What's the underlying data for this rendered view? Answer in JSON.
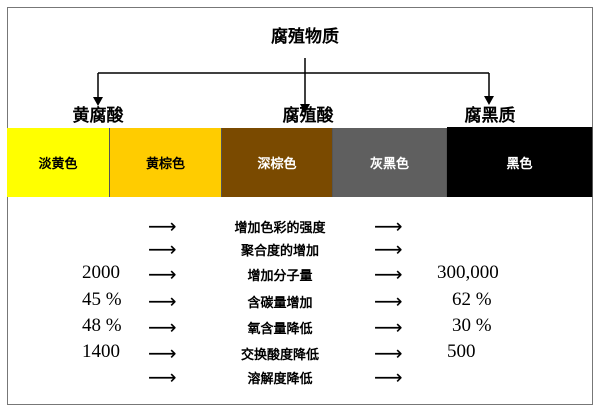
{
  "title": "腐殖物质",
  "levels": [
    "黄腐酸",
    "腐殖酸",
    "腐黑质"
  ],
  "colors": [
    {
      "label": "淡黄色",
      "bg": "#ffff00",
      "fg": "#000000"
    },
    {
      "label": "黄棕色",
      "bg": "#ffcc00",
      "fg": "#000000"
    },
    {
      "label": "深棕色",
      "bg": "#7a4a00",
      "fg": "#ffffff"
    },
    {
      "label": "灰黑色",
      "bg": "#5f5f5f",
      "fg": "#ffffff"
    },
    {
      "label": "黑色",
      "bg": "#000000",
      "fg": "#ffffff"
    }
  ],
  "rows": [
    {
      "left": "",
      "text": "增加色彩的强度",
      "right": ""
    },
    {
      "left": "",
      "text": "聚合度的增加",
      "right": ""
    },
    {
      "left": "2000",
      "text": "增加分子量",
      "right": "300,000"
    },
    {
      "left": "45 %",
      "text": "含碳量增加",
      "right": "62 %"
    },
    {
      "left": "48 %",
      "text": "氧含量降低",
      "right": "30 %"
    },
    {
      "left": "1400",
      "text": "交换酸度降低",
      "right": "500"
    },
    {
      "left": "",
      "text": "溶解度降低",
      "right": ""
    }
  ]
}
